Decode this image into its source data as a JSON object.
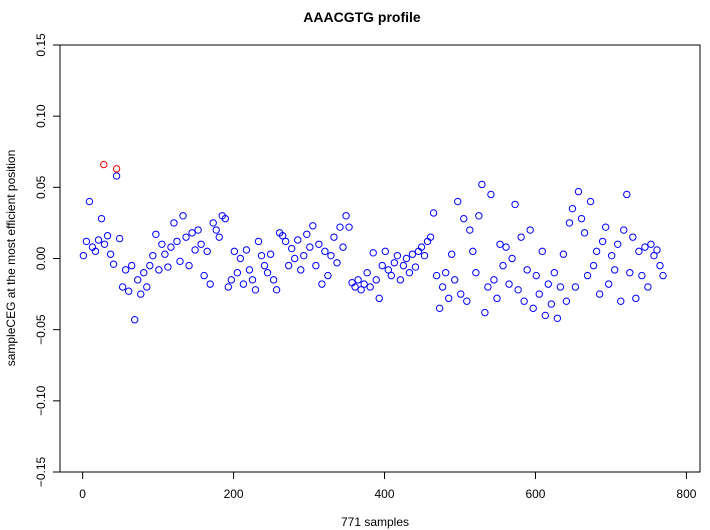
{
  "chart_data": {
    "type": "scatter",
    "title": "AAACGTG profile",
    "x_label": "771 samples",
    "y_label": "sampleCEG at the most efficient position",
    "xlim": [
      -30,
      818
    ],
    "xticks": [
      0,
      200,
      400,
      600,
      800
    ],
    "ylim": [
      -0.15,
      0.15
    ],
    "yticks": [
      {
        "value": -0.15,
        "label": "−0.15"
      },
      {
        "value": -0.1,
        "label": "−0.10"
      },
      {
        "value": -0.05,
        "label": "−0.05"
      },
      {
        "value": 0,
        "label": "0.00"
      },
      {
        "value": 0.05,
        "label": "0.05"
      },
      {
        "value": 0.1,
        "label": "0.10"
      },
      {
        "value": 0.15,
        "label": "0.15"
      }
    ],
    "series": [
      {
        "color": "#0000ff",
        "x": [
          1,
          5,
          9,
          13,
          17,
          21,
          25,
          29,
          33,
          37,
          41,
          45,
          49,
          53,
          57,
          61,
          65,
          69,
          73,
          77,
          81,
          85,
          89,
          93,
          97,
          101,
          105,
          109,
          113,
          117,
          121,
          125,
          129,
          133,
          137,
          141,
          145,
          149,
          153,
          157,
          161,
          165,
          169,
          173,
          177,
          181,
          185,
          189,
          193,
          197,
          201,
          205,
          209,
          213,
          217,
          221,
          225,
          229,
          233,
          237,
          241,
          245,
          249,
          253,
          257,
          261,
          265,
          269,
          273,
          277,
          281,
          285,
          289,
          293,
          297,
          301,
          305,
          309,
          313,
          317,
          321,
          325,
          329,
          333,
          337,
          341,
          345,
          349,
          353,
          357,
          361,
          365,
          369,
          373,
          377,
          381,
          385,
          389,
          393,
          397,
          401,
          405,
          409,
          413,
          417,
          421,
          425,
          429,
          433,
          437,
          441,
          445,
          449,
          453,
          457,
          461,
          465,
          469,
          473,
          477,
          481,
          485,
          489,
          493,
          497,
          501,
          505,
          509,
          513,
          517,
          521,
          525,
          529,
          533,
          537,
          541,
          545,
          549,
          553,
          557,
          561,
          565,
          569,
          573,
          577,
          581,
          585,
          589,
          593,
          597,
          601,
          605,
          609,
          613,
          617,
          621,
          625,
          629,
          633,
          637,
          641,
          645,
          649,
          653,
          657,
          661,
          665,
          669,
          673,
          677,
          681,
          685,
          689,
          693,
          697,
          701,
          705,
          709,
          713,
          717,
          721,
          725,
          729,
          733,
          737,
          741,
          745,
          749,
          753,
          757,
          761,
          765,
          769
        ],
        "values": [
          0.002,
          0.012,
          0.04,
          0.008,
          0.005,
          0.013,
          0.028,
          0.01,
          0.016,
          0.003,
          -0.004,
          0.058,
          0.014,
          -0.02,
          -0.008,
          -0.023,
          -0.005,
          -0.043,
          -0.015,
          -0.025,
          -0.01,
          -0.02,
          -0.005,
          0.002,
          0.017,
          -0.008,
          0.01,
          0.003,
          -0.006,
          0.008,
          0.025,
          0.012,
          -0.002,
          0.03,
          0.015,
          -0.005,
          0.018,
          0.006,
          0.02,
          0.01,
          -0.012,
          0.005,
          -0.018,
          0.025,
          0.02,
          0.015,
          0.03,
          0.028,
          -0.02,
          -0.015,
          0.005,
          -0.01,
          0.0,
          -0.018,
          0.006,
          -0.008,
          -0.015,
          -0.022,
          0.012,
          0.002,
          -0.005,
          -0.01,
          0.003,
          -0.015,
          -0.022,
          0.018,
          0.016,
          0.012,
          -0.005,
          0.007,
          0.0,
          0.013,
          -0.008,
          0.002,
          0.017,
          0.008,
          0.023,
          -0.005,
          0.01,
          -0.018,
          0.005,
          -0.012,
          0.002,
          0.015,
          -0.003,
          0.022,
          0.008,
          0.03,
          0.022,
          -0.017,
          -0.02,
          -0.015,
          -0.022,
          -0.018,
          -0.01,
          -0.02,
          0.004,
          -0.015,
          -0.028,
          -0.005,
          0.005,
          -0.008,
          -0.012,
          -0.003,
          0.002,
          -0.015,
          -0.005,
          0.0,
          -0.01,
          0.003,
          -0.006,
          0.005,
          0.008,
          0.002,
          0.012,
          0.015,
          0.032,
          -0.012,
          -0.035,
          -0.02,
          -0.01,
          -0.028,
          0.003,
          -0.015,
          0.04,
          -0.025,
          0.028,
          -0.03,
          0.02,
          0.005,
          -0.01,
          0.03,
          0.052,
          -0.038,
          -0.02,
          0.045,
          -0.015,
          -0.028,
          0.01,
          -0.005,
          0.008,
          -0.018,
          0.0,
          0.038,
          -0.022,
          0.015,
          -0.03,
          -0.008,
          0.02,
          -0.035,
          -0.012,
          -0.025,
          0.005,
          -0.04,
          -0.018,
          -0.032,
          -0.01,
          -0.042,
          -0.02,
          0.003,
          -0.03,
          0.025,
          0.035,
          -0.02,
          0.047,
          0.028,
          0.018,
          -0.012,
          0.04,
          -0.005,
          0.005,
          -0.025,
          0.012,
          0.022,
          -0.018,
          0.002,
          -0.008,
          0.01,
          -0.03,
          0.02,
          0.045,
          -0.01,
          0.015,
          -0.028,
          0.005,
          -0.012,
          0.008,
          -0.02,
          0.01,
          0.002,
          0.006,
          -0.005,
          -0.012
        ]
      },
      {
        "color": "#ff0000",
        "x": [
          28,
          45
        ],
        "values": [
          0.066,
          0.063
        ]
      }
    ]
  }
}
